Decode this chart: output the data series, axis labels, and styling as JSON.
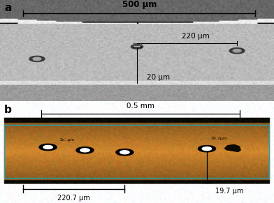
{
  "fig_width": 3.92,
  "fig_height": 2.91,
  "dpi": 100,
  "panel_a_label": "a",
  "panel_b_label": "b",
  "scale_500": "500 μm",
  "scale_220": "220 μm",
  "scale_20": "20 μm",
  "scale_05mm": "0.5 mm",
  "scale_2207": "220.7 μm",
  "scale_197": "19.7 μm",
  "scale_197_inner": "19.7μm"
}
